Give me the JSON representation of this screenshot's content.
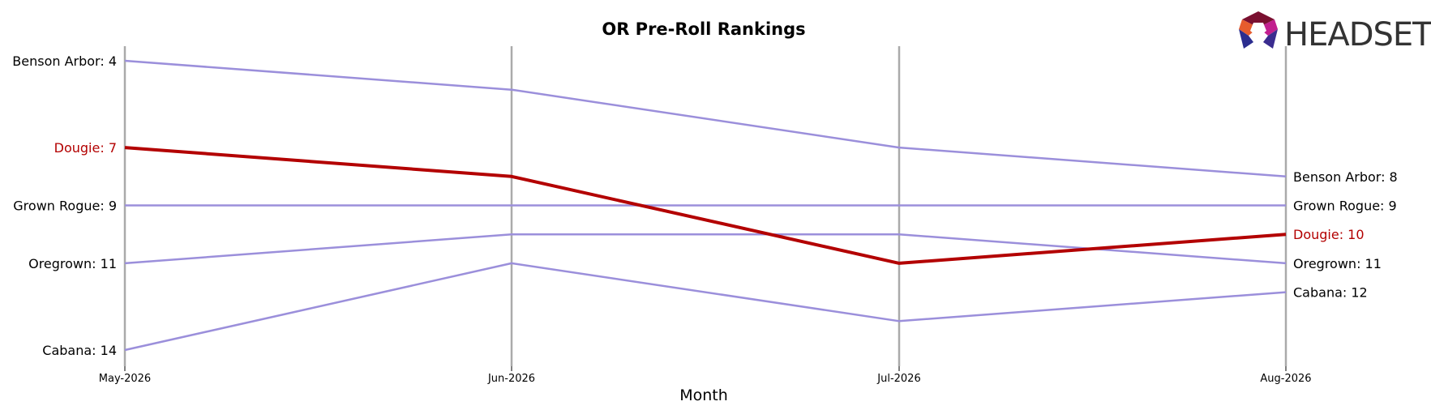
{
  "chart_data": {
    "type": "line",
    "title": "OR Pre-Roll Rankings",
    "xlabel": "Month",
    "ylabel": "",
    "categories": [
      "May-2026",
      "Jun-2026",
      "Jul-2026",
      "Aug-2026"
    ],
    "y_inverted": true,
    "ylim": [
      3.5,
      14.5
    ],
    "grid": "vertical lines at each month",
    "series": [
      {
        "name": "Benson Arbor",
        "values": [
          4,
          5,
          7,
          8
        ],
        "color": "#9b8fdb",
        "highlight": false
      },
      {
        "name": "Grown Rogue",
        "values": [
          9,
          9,
          9,
          9
        ],
        "color": "#9b8fdb",
        "highlight": false
      },
      {
        "name": "Oregrown",
        "values": [
          11,
          10,
          10,
          11
        ],
        "color": "#9b8fdb",
        "highlight": false
      },
      {
        "name": "Cabana",
        "values": [
          14,
          11,
          13,
          12
        ],
        "color": "#9b8fdb",
        "highlight": false
      },
      {
        "name": "Dougie",
        "values": [
          7,
          8,
          11,
          10
        ],
        "color": "#b30000",
        "highlight": true
      }
    ],
    "start_labels": [
      {
        "name": "Benson Arbor",
        "text": "Benson Arbor: 4"
      },
      {
        "name": "Dougie",
        "text": "Dougie: 7"
      },
      {
        "name": "Grown Rogue",
        "text": "Grown Rogue: 9"
      },
      {
        "name": "Oregrown",
        "text": "Oregrown: 11"
      },
      {
        "name": "Cabana",
        "text": "Cabana: 14"
      }
    ],
    "end_labels": [
      {
        "name": "Benson Arbor",
        "text": "Benson Arbor: 8"
      },
      {
        "name": "Grown Rogue",
        "text": "Grown Rogue: 9"
      },
      {
        "name": "Dougie",
        "text": "Dougie: 10"
      },
      {
        "name": "Oregrown",
        "text": "Oregrown: 11"
      },
      {
        "name": "Cabana",
        "text": "Cabana: 12"
      }
    ]
  },
  "logo": {
    "text": "HEADSET",
    "icon": "headset-hexagon-icon"
  },
  "colors": {
    "highlight": "#b30000",
    "other": "#9b8fdb",
    "gridline": "#aaaaaa"
  }
}
